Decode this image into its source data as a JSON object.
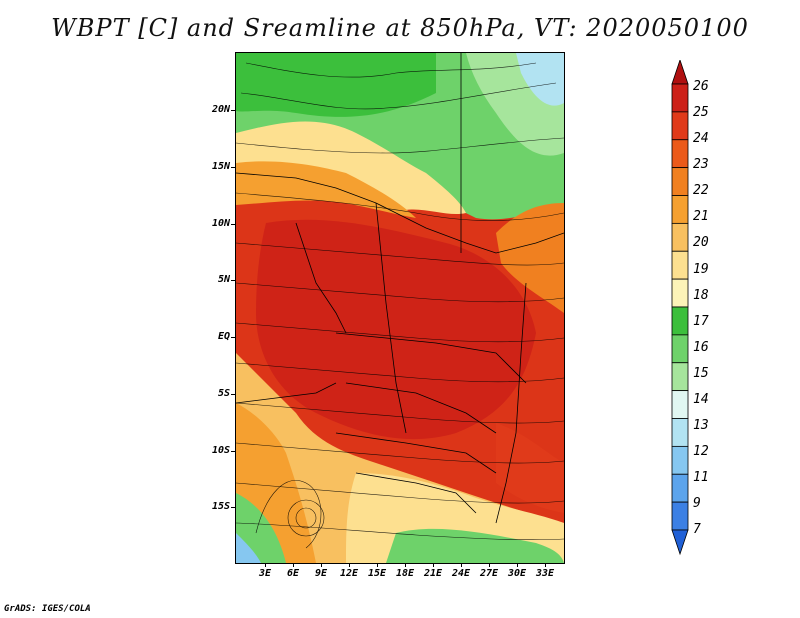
{
  "title": "WBPT [C] and Sreamline at 850hPa, VT: 2020050100",
  "footer": "GrADS: IGES/COLA",
  "lat_labels": [
    "20N",
    "15N",
    "10N",
    "5N",
    "EQ",
    "5S",
    "10S",
    "15S"
  ],
  "lon_labels": [
    "3E",
    "6E",
    "9E",
    "12E",
    "15E",
    "18E",
    "21E",
    "24E",
    "27E",
    "30E",
    "33E"
  ],
  "colorbar": {
    "labels": [
      "26",
      "25",
      "24",
      "23",
      "22",
      "21",
      "20",
      "19",
      "18",
      "17",
      "16",
      "15",
      "14",
      "13",
      "12",
      "11",
      "9",
      "7"
    ],
    "colors": [
      "#b01010",
      "#cc2018",
      "#e03a1a",
      "#eb5a1a",
      "#f08020",
      "#f5a030",
      "#f8c060",
      "#fde090",
      "#fcf3b8",
      "#3cbf3c",
      "#6ed26a",
      "#a6e59c",
      "#e1f7f2",
      "#b2e3f2",
      "#86c7f0",
      "#5ca4ec",
      "#3c80e4",
      "#2060d6"
    ]
  },
  "legend_scale": {
    "min": 7,
    "max": 26,
    "unit": "C"
  }
}
